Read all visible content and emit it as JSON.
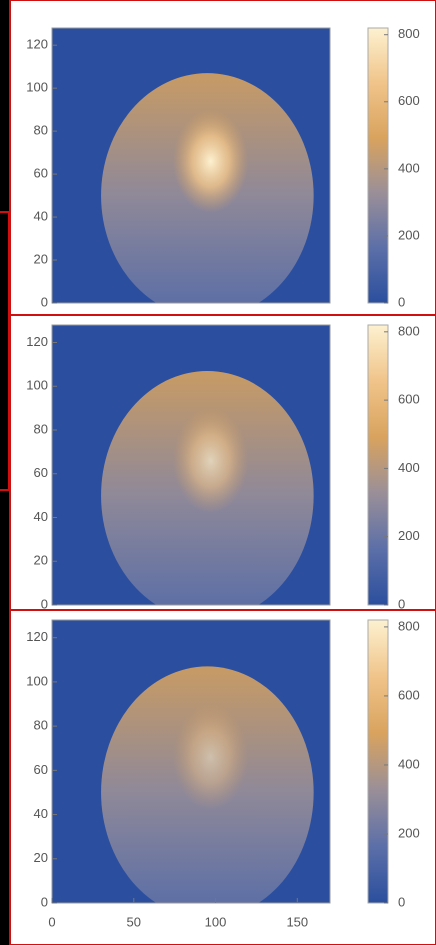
{
  "chart_data": [
    {
      "type": "heatmap",
      "xlim": [
        0,
        170
      ],
      "ylim": [
        0,
        128
      ],
      "yticks": [
        0,
        20,
        40,
        60,
        80,
        100,
        120
      ],
      "clim": [
        0,
        820
      ],
      "cticks": [
        0,
        200,
        400,
        600,
        800
      ],
      "colormap": [
        "#2b4f9e",
        "#5c6fa8",
        "#9a8f98",
        "#d9a35e",
        "#f0c48a",
        "#fdf1d0"
      ]
    },
    {
      "type": "heatmap",
      "xlim": [
        0,
        170
      ],
      "ylim": [
        0,
        128
      ],
      "yticks": [
        0,
        20,
        40,
        60,
        80,
        100,
        120
      ],
      "clim": [
        0,
        820
      ],
      "cticks": [
        0,
        200,
        400,
        600,
        800
      ],
      "colormap": [
        "#2b4f9e",
        "#5c6fa8",
        "#9a8f98",
        "#d9a35e",
        "#f0c48a",
        "#fdf1d0"
      ]
    },
    {
      "type": "heatmap",
      "xlim": [
        0,
        170
      ],
      "ylim": [
        0,
        128
      ],
      "xticks": [
        0,
        50,
        100,
        150
      ],
      "yticks": [
        0,
        20,
        40,
        60,
        80,
        100,
        120
      ],
      "clim": [
        0,
        820
      ],
      "cticks": [
        0,
        200,
        400,
        600,
        800
      ],
      "colormap": [
        "#2b4f9e",
        "#5c6fa8",
        "#9a8f98",
        "#d9a35e",
        "#f0c48a",
        "#fdf1d0"
      ]
    }
  ]
}
